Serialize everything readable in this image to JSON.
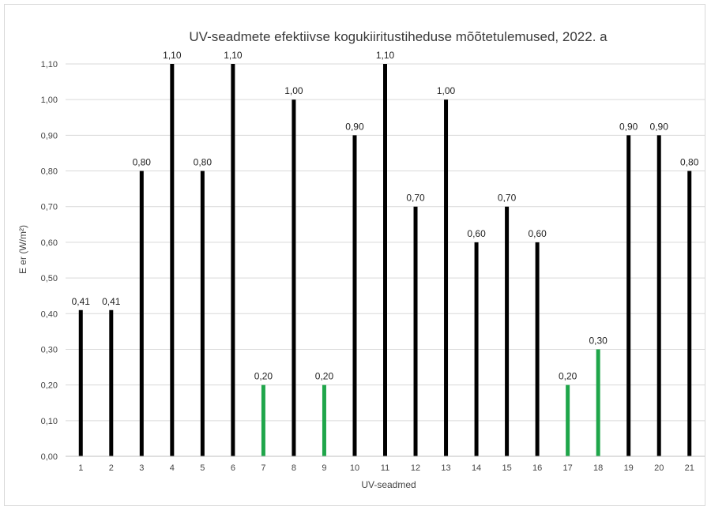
{
  "chart_data": {
    "type": "bar",
    "title": "UV-seadmete efektiivse kogukiiritustiheduse mõõtetulemused, 2022. a",
    "xlabel": "UV-seadmed",
    "ylabel": "E er (W/m²)",
    "ylim": [
      0,
      1.1
    ],
    "yticks": [
      "0,00",
      "0,10",
      "0,20",
      "0,30",
      "0,40",
      "0,50",
      "0,60",
      "0,70",
      "0,80",
      "0,90",
      "1,00",
      "1,10"
    ],
    "categories": [
      "1",
      "2",
      "3",
      "4",
      "5",
      "6",
      "7",
      "8",
      "9",
      "10",
      "11",
      "12",
      "13",
      "14",
      "15",
      "16",
      "17",
      "18",
      "19",
      "20",
      "21"
    ],
    "values": [
      0.41,
      0.41,
      0.8,
      1.1,
      0.8,
      1.1,
      0.2,
      1.0,
      0.2,
      0.9,
      1.1,
      0.7,
      1.0,
      0.6,
      0.7,
      0.6,
      0.2,
      0.3,
      0.9,
      0.9,
      0.8
    ],
    "value_labels": [
      "0,41",
      "0,41",
      "0,80",
      "1,10",
      "0,80",
      "1,10",
      "0,20",
      "1,00",
      "0,20",
      "0,90",
      "1,10",
      "0,70",
      "1,00",
      "0,60",
      "0,70",
      "0,60",
      "0,20",
      "0,30",
      "0,90",
      "0,90",
      "0,80"
    ],
    "bar_colors": [
      "#000000",
      "#000000",
      "#000000",
      "#000000",
      "#000000",
      "#000000",
      "#1fa64a",
      "#000000",
      "#1fa64a",
      "#000000",
      "#000000",
      "#000000",
      "#000000",
      "#000000",
      "#000000",
      "#000000",
      "#1fa64a",
      "#1fa64a",
      "#000000",
      "#000000",
      "#000000"
    ],
    "grid": true,
    "legend": "none"
  }
}
